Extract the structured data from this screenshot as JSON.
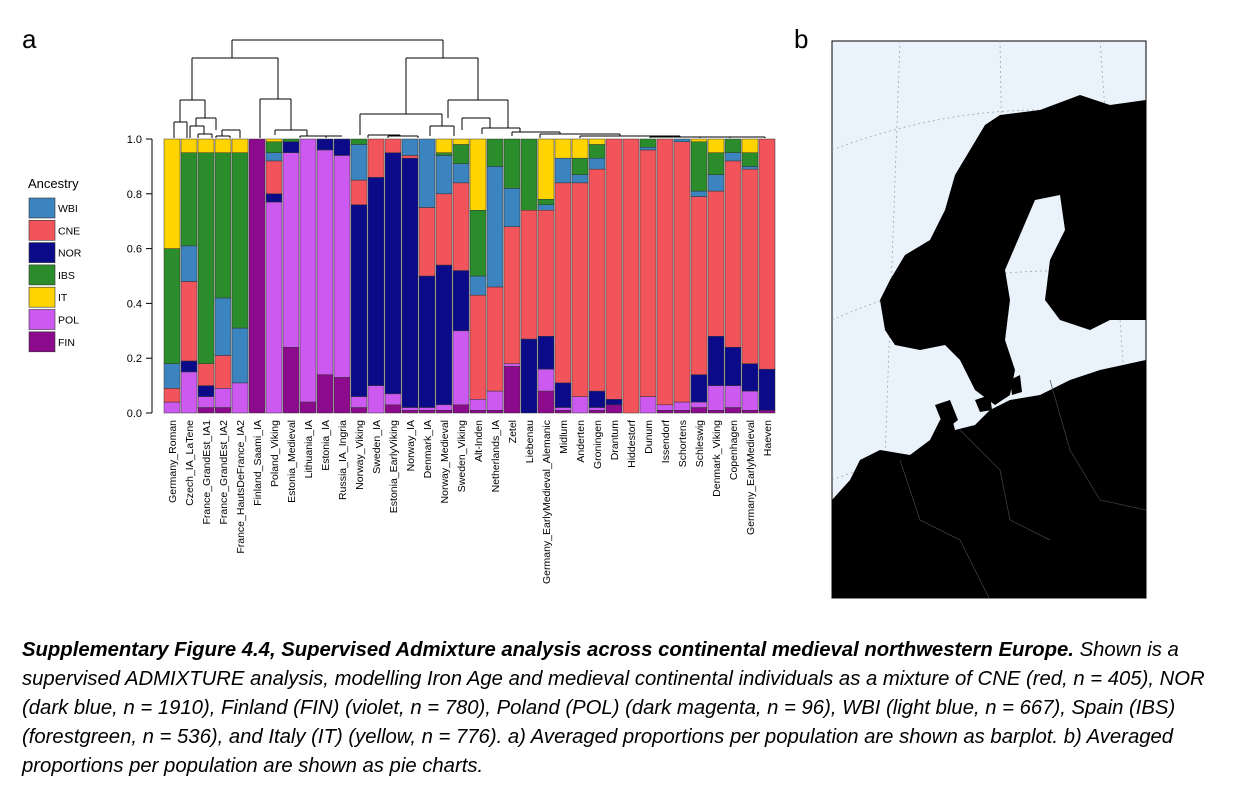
{
  "panel_a_label": "a",
  "panel_b_label": "b",
  "chart_data": {
    "type": "stacked-bar",
    "legend_title": "Ancestry",
    "categories": [
      "Germany_Roman",
      "Czech_IA_LaTene",
      "France_GrandEst_IA1",
      "France_GrandEst_IA2",
      "France_HautsDeFrance_IA2",
      "Finland_Saami_IA",
      "Poland_Viking",
      "Estonia_Medieval",
      "Lithuania_IA",
      "Estonia_IA",
      "Russia_IA_Ingria",
      "Norway_Viking",
      "Sweden_IA",
      "Estonia_EarlyViking",
      "Norway_IA",
      "Denmark_IA",
      "Norway_Medieval",
      "Sweden_Viking",
      "Alt-Inden",
      "Netherlands_IA",
      "Zetel",
      "Liebenau",
      "Germany_EarlyMedieval_Alemanic",
      "Midlum",
      "Anderten",
      "Groningen",
      "Drantum",
      "Hiddestorf",
      "Dunum",
      "Issendorf",
      "Schortens",
      "Schleswig",
      "Denmark_Viking",
      "Copenhagen",
      "Germany_EarlyMedieval",
      "Haeven"
    ],
    "series": [
      {
        "name": "WBI",
        "color": "#3b84bf",
        "values": [
          0.09,
          0.13,
          0,
          0.21,
          0.2,
          0,
          0.03,
          0,
          0,
          0,
          0,
          0.13,
          0,
          0,
          0.06,
          0.25,
          0.14,
          0.07,
          0.07,
          0.44,
          0.14,
          0,
          0.02,
          0.09,
          0.03,
          0.04,
          0,
          0,
          0.01,
          0,
          0.01,
          0.02,
          0.06,
          0.03,
          0.01,
          0
        ]
      },
      {
        "name": "CNE",
        "color": "#f2545b",
        "values": [
          0.05,
          0.29,
          0.08,
          0.12,
          0,
          0,
          0.12,
          0,
          0,
          0,
          0,
          0.09,
          0.14,
          0.05,
          0.01,
          0.25,
          0.26,
          0.32,
          0.38,
          0.38,
          0.5,
          0.47,
          0.46,
          0.73,
          0.78,
          0.81,
          0.95,
          1.0,
          0.9,
          0.97,
          0.95,
          0.65,
          0.53,
          0.68,
          0.71,
          0.84
        ]
      },
      {
        "name": "NOR",
        "color": "#0b0b8a",
        "values": [
          0,
          0.04,
          0.04,
          0,
          0,
          0,
          0.03,
          0.04,
          0,
          0.04,
          0.06,
          0.7,
          0.76,
          0.88,
          0.91,
          0.48,
          0.51,
          0.22,
          0,
          0,
          0,
          0.27,
          0.12,
          0.09,
          0,
          0.06,
          0.02,
          0,
          0,
          0,
          0,
          0.1,
          0.18,
          0.14,
          0.1,
          0.15
        ]
      },
      {
        "name": "IBS",
        "color": "#2b8c2b",
        "values": [
          0.42,
          0.34,
          0.77,
          0.53,
          0.64,
          0,
          0.04,
          0.01,
          0,
          0,
          0,
          0.02,
          0,
          0,
          0,
          0,
          0.01,
          0.07,
          0.24,
          0.1,
          0.18,
          0.26,
          0.02,
          0,
          0.06,
          0.05,
          0,
          0,
          0.03,
          0,
          0,
          0.18,
          0.08,
          0.05,
          0.05,
          0
        ]
      },
      {
        "name": "IT",
        "color": "#ffd400",
        "values": [
          0.4,
          0.05,
          0.05,
          0.05,
          0.05,
          0,
          0.01,
          0,
          0,
          0,
          0,
          0,
          0,
          0,
          0,
          0,
          0.05,
          0.02,
          0.26,
          0,
          0,
          0,
          0.22,
          0.07,
          0.07,
          0.02,
          0,
          0,
          0,
          0,
          0,
          0.01,
          0.05,
          0,
          0.05,
          0
        ]
      },
      {
        "name": "POL",
        "color": "#cc5af0",
        "values": [
          0.04,
          0.15,
          0.04,
          0.07,
          0.11,
          0,
          0.77,
          0.71,
          0.96,
          0.82,
          0.81,
          0.04,
          0.1,
          0.04,
          0.01,
          0.01,
          0.02,
          0.27,
          0.04,
          0.07,
          0.01,
          0,
          0.08,
          0.01,
          0.06,
          0.01,
          0,
          0,
          0.06,
          0.02,
          0.03,
          0.02,
          0.09,
          0.08,
          0.07,
          0
        ]
      },
      {
        "name": "FIN",
        "color": "#8c0a8c",
        "values": [
          0,
          0,
          0.02,
          0.02,
          0,
          1.0,
          0,
          0.24,
          0.04,
          0.14,
          0.13,
          0.02,
          0,
          0.03,
          0.01,
          0.01,
          0.01,
          0.03,
          0.01,
          0.01,
          0.17,
          0,
          0.08,
          0.01,
          0,
          0.01,
          0.03,
          0,
          0,
          0.01,
          0.01,
          0.02,
          0.01,
          0.02,
          0.01,
          0.01
        ]
      }
    ],
    "stack_order": [
      6,
      5,
      2,
      1,
      0,
      3,
      4
    ],
    "ylim": [
      0,
      1
    ],
    "yticks": [
      {
        "value": 0,
        "label": "0.0"
      },
      0.2,
      0.4,
      0.6,
      0.8,
      {
        "value": 1,
        "label": "1.0"
      }
    ]
  },
  "caption": {
    "title": "Supplementary Figure 4.4, Supervised Admixture analysis across continental medieval northwestern Europe.",
    "text": "Shown is a supervised ADMIXTURE analysis, modelling Iron Age and medieval continental individuals as a mixture of CNE (red, n = 405), NOR (dark blue, n = 1910), Finland (FIN) (violet, n = 780), Poland (POL) (dark magenta, n = 96), WBI (light blue, n = 667), Spain (IBS) (forestgreen, n = 536), and Italy (IT) (yellow, n = 776). a) Averaged proportions per population are shown as barplot. b)  Averaged proportions per population are shown as pie charts."
  }
}
